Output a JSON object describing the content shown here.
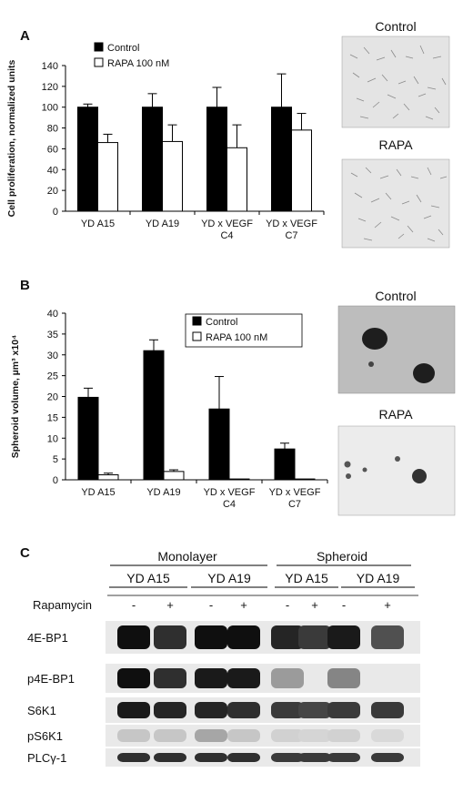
{
  "panels": {
    "A": {
      "letter": "A",
      "micro_labels": [
        "Control",
        "RAPA"
      ]
    },
    "B": {
      "letter": "B",
      "micro_labels": [
        "Control",
        "RAPA"
      ]
    },
    "C": {
      "letter": "C",
      "group_labels": [
        "Monolayer",
        "Spheroid"
      ],
      "subgroup_labels": [
        "YD A15",
        "YD A19",
        "YD A15",
        "YD A19"
      ],
      "treatment_label": "Rapamycin",
      "signs": [
        "-",
        "+",
        "-",
        "+",
        "-",
        "+",
        "-",
        "+"
      ],
      "blot_labels": [
        "4E-BP1",
        "p4E-BP1",
        "S6K1",
        "pS6K1",
        "PLCγ-1"
      ]
    }
  },
  "colors": {
    "control": "#000000",
    "rapa": "#ffffff"
  },
  "chart_data": [
    {
      "type": "bar",
      "panel": "A",
      "categories": [
        [
          "YD A15"
        ],
        [
          "YD A19"
        ],
        [
          "YD x VEGF",
          "C4"
        ],
        [
          "YD x VEGF",
          "C7"
        ]
      ],
      "series": [
        {
          "name": "Control",
          "values": [
            100,
            100,
            100,
            100
          ],
          "errors": [
            3,
            13,
            19,
            32
          ]
        },
        {
          "name": "RAPA 100 nM",
          "values": [
            66,
            67,
            61,
            78
          ],
          "errors": [
            8,
            16,
            22,
            16
          ]
        }
      ],
      "ylabel": "Cell proliferation, normalized units",
      "ylim": [
        0,
        140
      ],
      "yticks": [
        0,
        20,
        40,
        60,
        80,
        100,
        120,
        140
      ]
    },
    {
      "type": "bar",
      "panel": "B",
      "categories": [
        [
          "YD A15"
        ],
        [
          "YD A19"
        ],
        [
          "YD x VEGF",
          "C4"
        ],
        [
          "YD x VEGF",
          "C7"
        ]
      ],
      "series": [
        {
          "name": "Control",
          "values": [
            19.8,
            31,
            17,
            7.4
          ],
          "errors": [
            2.2,
            2.6,
            7.8,
            1.4
          ]
        },
        {
          "name": "RAPA 100 nM",
          "values": [
            1.2,
            2,
            0.2,
            0.2
          ],
          "errors": [
            0.4,
            0.4,
            0,
            0
          ]
        }
      ],
      "ylabel": "Spheroid volume, µm³ x10⁴",
      "ylim": [
        0,
        40
      ],
      "yticks": [
        0,
        5,
        10,
        15,
        20,
        25,
        30,
        35,
        40
      ]
    }
  ]
}
